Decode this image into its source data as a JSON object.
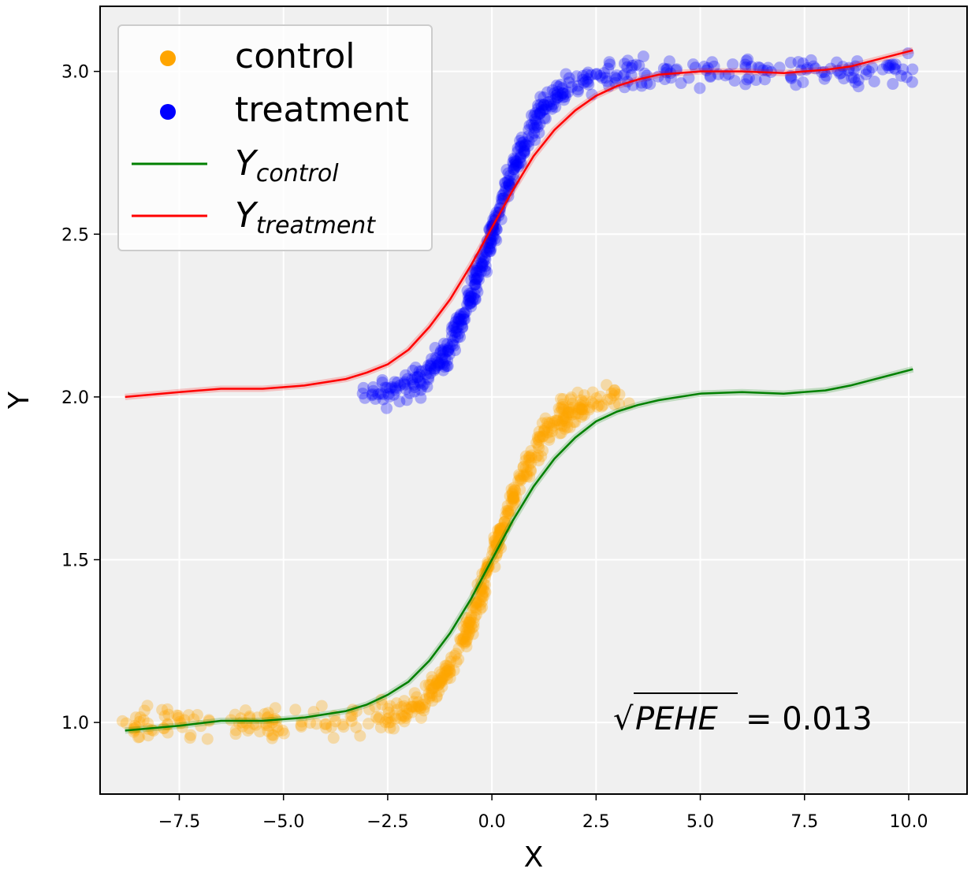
{
  "chart_data": {
    "type": "scatter",
    "xlabel": "X",
    "ylabel": "Y",
    "xlim": [
      -9.4,
      11.4
    ],
    "ylim": [
      0.78,
      3.2
    ],
    "grid": true,
    "background_color": "#f0f0f0",
    "xticks": [
      -7.5,
      -5.0,
      -2.5,
      0.0,
      2.5,
      5.0,
      7.5,
      10.0
    ],
    "xtick_labels": [
      "−7.5",
      "−5.0",
      "−2.5",
      "0.0",
      "2.5",
      "5.0",
      "7.5",
      "10.0"
    ],
    "yticks": [
      1.0,
      1.5,
      2.0,
      2.5,
      3.0
    ],
    "ytick_labels": [
      "1.0",
      "1.5",
      "2.0",
      "2.5",
      "3.0"
    ],
    "legend_position": "top-left",
    "legend": {
      "control": "control",
      "treatment": "treatment",
      "y_control_main": "Y",
      "y_control_sub": "control",
      "y_treatment_main": "Y",
      "y_treatment_sub": "treatment"
    },
    "annotation": {
      "sqrt_symbol": "√",
      "metric": "PEHE",
      "value_text": "= 0.013"
    },
    "series": [
      {
        "name": "control",
        "kind": "scatter",
        "color": "#ffa500",
        "opacity": 0.3,
        "x_range": [
          -8.9,
          3.3
        ],
        "curve": {
          "base": 1.0,
          "amplitude": 1.0,
          "center": 0.0,
          "scale": 1.0
        }
      },
      {
        "name": "treatment",
        "kind": "scatter",
        "color": "#0000ff",
        "opacity": 0.3,
        "x_range": [
          -3.1,
          10.1
        ],
        "curve": {
          "base": 2.0,
          "amplitude": 1.0,
          "center": 0.0,
          "scale": 1.0
        }
      },
      {
        "name": "Y_control",
        "kind": "line",
        "color": "#008000",
        "x": [
          -8.8,
          -7.5,
          -6.5,
          -5.5,
          -4.5,
          -3.5,
          -3.0,
          -2.5,
          -2.0,
          -1.5,
          -1.0,
          -0.5,
          0.0,
          0.5,
          1.0,
          1.5,
          2.0,
          2.5,
          3.0,
          3.5,
          4.0,
          5.0,
          6.0,
          7.0,
          8.0,
          8.6,
          10.1
        ],
        "y": [
          0.975,
          0.99,
          1.005,
          1.005,
          1.015,
          1.035,
          1.055,
          1.085,
          1.125,
          1.19,
          1.275,
          1.38,
          1.5,
          1.62,
          1.725,
          1.81,
          1.875,
          1.925,
          1.955,
          1.975,
          1.99,
          2.01,
          2.015,
          2.01,
          2.02,
          2.035,
          2.085
        ]
      },
      {
        "name": "Y_treatment",
        "kind": "line",
        "color": "#ff0000",
        "x": [
          -8.8,
          -7.5,
          -6.5,
          -5.5,
          -4.5,
          -3.5,
          -3.0,
          -2.5,
          -2.0,
          -1.5,
          -1.0,
          -0.5,
          0.0,
          0.5,
          1.0,
          1.5,
          2.0,
          2.5,
          3.0,
          3.5,
          4.0,
          5.0,
          6.0,
          7.0,
          8.0,
          8.6,
          10.1
        ],
        "y": [
          2.0,
          2.015,
          2.025,
          2.025,
          2.035,
          2.055,
          2.075,
          2.1,
          2.145,
          2.215,
          2.3,
          2.405,
          2.52,
          2.635,
          2.74,
          2.82,
          2.88,
          2.925,
          2.955,
          2.975,
          2.99,
          3.0,
          3.0,
          2.995,
          3.005,
          3.015,
          3.065
        ]
      }
    ]
  }
}
